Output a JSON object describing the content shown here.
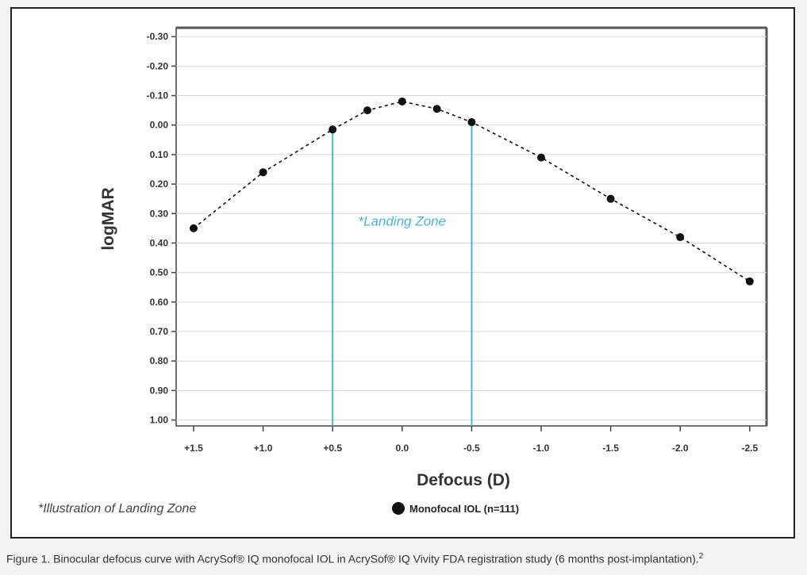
{
  "chart_data": {
    "type": "line",
    "title": "",
    "xlabel": "Defocus (D)",
    "ylabel": "logMAR",
    "x_ticks": [
      "+1.5",
      "+1.0",
      "+0.5",
      "0.0",
      "-0.5",
      "-1.0",
      "-1.5",
      "-2.0",
      "-2.5"
    ],
    "y_ticks": [
      "-0.30",
      "-0.20",
      "-0.10",
      "0.00",
      "0.10",
      "0.20",
      "0.30",
      "0.40",
      "0.50",
      "0.60",
      "0.70",
      "0.80",
      "0.90",
      "1.00"
    ],
    "ylim": [
      -0.3,
      1.0
    ],
    "y_inverted": true,
    "xlim": [
      1.5,
      -2.5
    ],
    "grid": "horizontal",
    "legend_position": "bottom-center",
    "series": [
      {
        "name": "Monofocal IOL (n=111)",
        "color": "#111111",
        "line_style": "dashed",
        "points": [
          {
            "x": 1.5,
            "y": 0.35
          },
          {
            "x": 1.0,
            "y": 0.16
          },
          {
            "x": 0.5,
            "y": 0.015
          },
          {
            "x": 0.25,
            "y": -0.05
          },
          {
            "x": 0.0,
            "y": -0.08
          },
          {
            "x": -0.25,
            "y": -0.055
          },
          {
            "x": -0.5,
            "y": -0.01
          },
          {
            "x": -1.0,
            "y": 0.11
          },
          {
            "x": -1.5,
            "y": 0.25
          },
          {
            "x": -2.0,
            "y": 0.38
          },
          {
            "x": -2.5,
            "y": 0.53
          }
        ]
      }
    ],
    "landing_zone": {
      "label": "*Landing Zone",
      "x_from": 0.5,
      "x_to": -0.5,
      "color": "#4fb3d9"
    },
    "footnote": "*Illustration of Landing Zone"
  },
  "caption": {
    "text": "Figure 1. Binocular defocus curve with AcrySof® IQ monofocal IOL in AcrySof® IQ Vivity FDA registration study (6 months post-implantation).",
    "superscript": "2"
  }
}
